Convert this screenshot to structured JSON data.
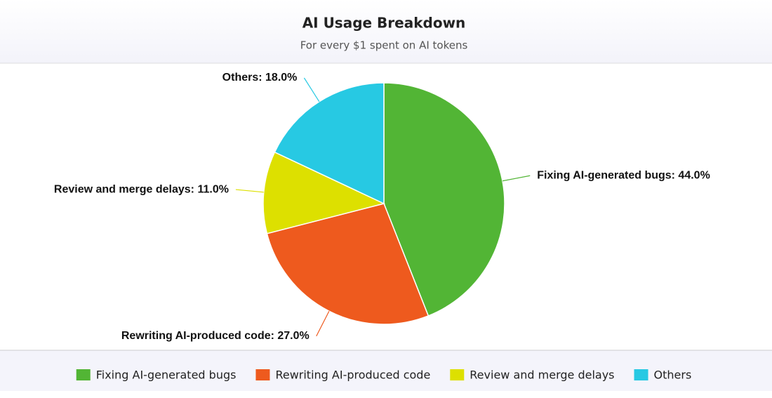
{
  "chart_data": {
    "type": "pie",
    "title": "AI Usage Breakdown",
    "subtitle": "For every $1 spent on AI tokens",
    "categories": [
      "Fixing AI-generated bugs",
      "Rewriting AI-produced code",
      "Review and merge delays",
      "Others"
    ],
    "values": [
      44,
      27,
      11,
      18
    ],
    "value_labels": [
      "Fixing AI-generated bugs: 44.0%",
      "Rewriting AI-produced code: 27.0%",
      "Review and merge delays: 11.0%",
      "Others: 18.0%"
    ],
    "colors": [
      "#52b535",
      "#ee5a1e",
      "#dde000",
      "#27c9e3"
    ]
  }
}
